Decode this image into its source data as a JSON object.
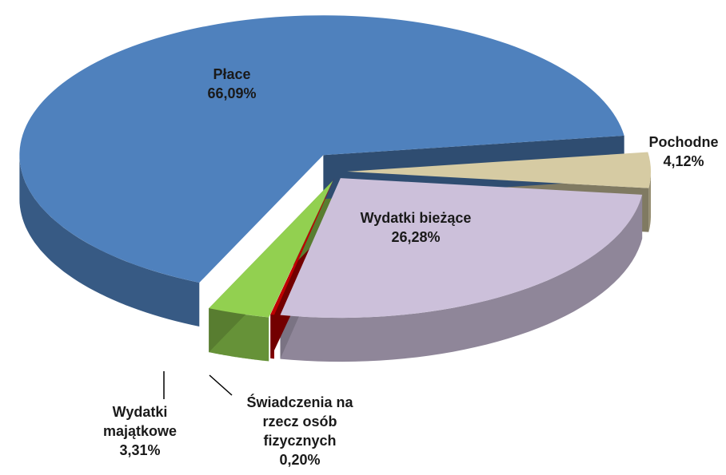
{
  "chart_data": {
    "type": "pie",
    "categories": [
      "Pochodne",
      "Wydatki bieżące",
      "Świadczenia na\nrzecz osób\nfizycznych",
      "Wydatki\nmajątkowe",
      "Płace"
    ],
    "values": [
      4.12,
      26.28,
      0.2,
      3.31,
      66.09
    ],
    "value_labels": [
      "4,12%",
      "26,28%",
      "0,20%",
      "3,31%",
      "66,09%"
    ],
    "colors": [
      "#d6cba3",
      "#ccc0da",
      "#c00000",
      "#92d050",
      "#4f81bd"
    ]
  }
}
